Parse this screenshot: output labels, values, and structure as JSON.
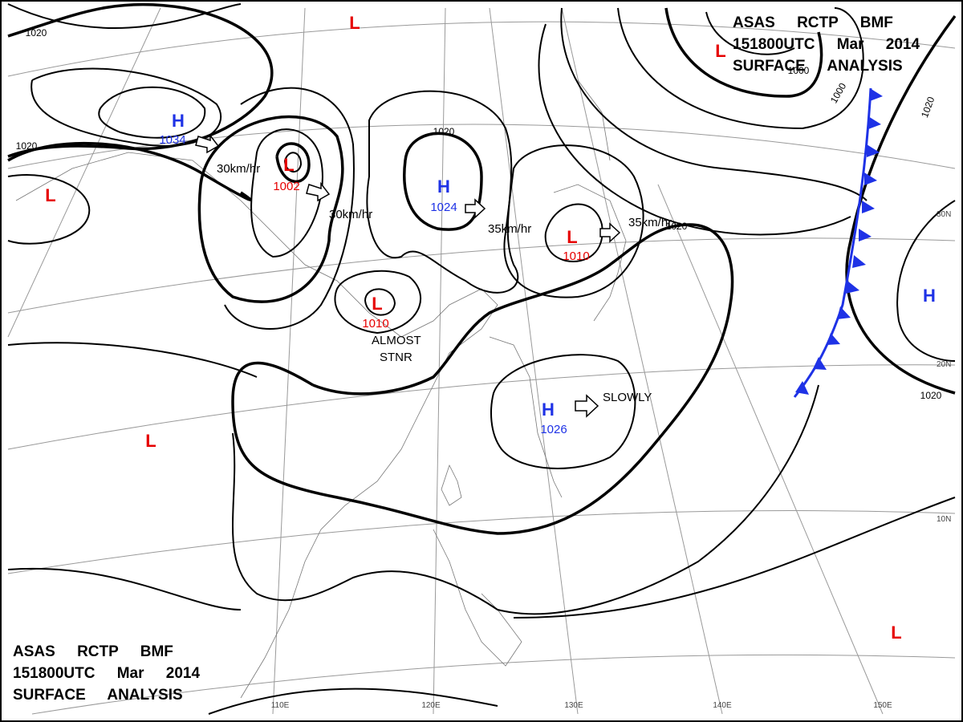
{
  "header": {
    "lines": [
      "ASAS RCTP BMF",
      "151800UTC Mar 2014",
      "SURFACE ANALYSIS"
    ]
  },
  "centers": [
    {
      "letter": "H",
      "pressure": "1034"
    },
    {
      "letter": "L",
      "pressure": "1002"
    },
    {
      "letter": "H",
      "pressure": "1024"
    },
    {
      "letter": "L",
      "pressure": "1010"
    },
    {
      "letter": "L",
      "pressure": "1010"
    },
    {
      "letter": "H",
      "pressure": "1026"
    },
    {
      "letter": "L"
    },
    {
      "letter": "L"
    },
    {
      "letter": "L"
    },
    {
      "letter": "L"
    },
    {
      "letter": "L"
    },
    {
      "letter": "H"
    }
  ],
  "isobar_labels": [
    "1020",
    "1020",
    "1020",
    "1020",
    "1020",
    "1020",
    "1000",
    "1000"
  ],
  "motion_labels": [
    "30km/hr",
    "30km/hr",
    "35km/hr",
    "35km/hr",
    "SLOWLY",
    "ALMOST",
    "STNR"
  ],
  "longitudes": [
    "110E",
    "120E",
    "130E",
    "140E",
    "150E"
  ],
  "latitudes": [
    "30N",
    "20N",
    "10N"
  ]
}
